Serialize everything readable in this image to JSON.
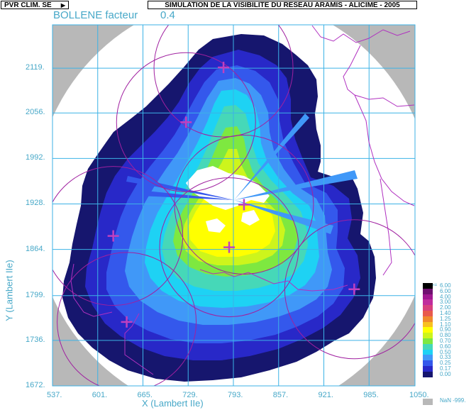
{
  "header": {
    "product_button": "PVR CLIM. SE",
    "title": "SIMULATION DE LA VISIBILITE DU RESEAU ARAMIS - ALICIME - 2005"
  },
  "subtitle": {
    "site": "BOLLENE facteur",
    "factor": "0.4"
  },
  "axes": {
    "y_label": "Y (Lambert IIe)",
    "x_label": "X (Lambert IIe)",
    "y_ticks": [
      "2119.",
      "2056.",
      "1992.",
      "1928.",
      "1864.",
      "1799.",
      "1736.",
      "1672."
    ],
    "x_ticks": [
      "537.",
      "601.",
      "665.",
      "729.",
      "793.",
      "857.",
      "921.",
      "985.",
      "1050."
    ],
    "x_range": [
      537,
      1050
    ],
    "y_range": [
      1672,
      2180
    ]
  },
  "legend": {
    "ge_marker": ">=",
    "items": [
      {
        "label": "6.00",
        "color": "#000000"
      },
      {
        "label": "6.00",
        "color": "#701070"
      },
      {
        "label": "4.00",
        "color": "#a01890"
      },
      {
        "label": "3.00",
        "color": "#c02c9c"
      },
      {
        "label": "2.00",
        "color": "#d8407c"
      },
      {
        "label": "1.40",
        "color": "#e85a4c"
      },
      {
        "label": "1.25",
        "color": "#f08a2c"
      },
      {
        "label": "1.10",
        "color": "#f8c020"
      },
      {
        "label": "0.90",
        "color": "#ffff00"
      },
      {
        "label": "0.80",
        "color": "#cdf51c"
      },
      {
        "label": "0.70",
        "color": "#7ee840"
      },
      {
        "label": "0.60",
        "color": "#46d8b8"
      },
      {
        "label": "0.50",
        "color": "#1ed2f4"
      },
      {
        "label": "0.33",
        "color": "#4098f8"
      },
      {
        "label": "0.25",
        "color": "#3458ec"
      },
      {
        "label": "0.17",
        "color": "#2828c8"
      },
      {
        "label": "0.00",
        "color": "#16166e"
      }
    ],
    "nan_label": "NaN  -999."
  },
  "radars": [
    {
      "x": 779,
      "y": 2120
    },
    {
      "x": 726,
      "y": 2043
    },
    {
      "x": 808,
      "y": 1927
    },
    {
      "x": 787,
      "y": 1867
    },
    {
      "x": 623,
      "y": 1883
    },
    {
      "x": 642,
      "y": 1762
    },
    {
      "x": 964,
      "y": 1808
    }
  ],
  "colors": {
    "grid": "#3cb2e6",
    "borders": "#b030c0",
    "coast": "#a0207a",
    "nan": "#b8b8b8"
  }
}
